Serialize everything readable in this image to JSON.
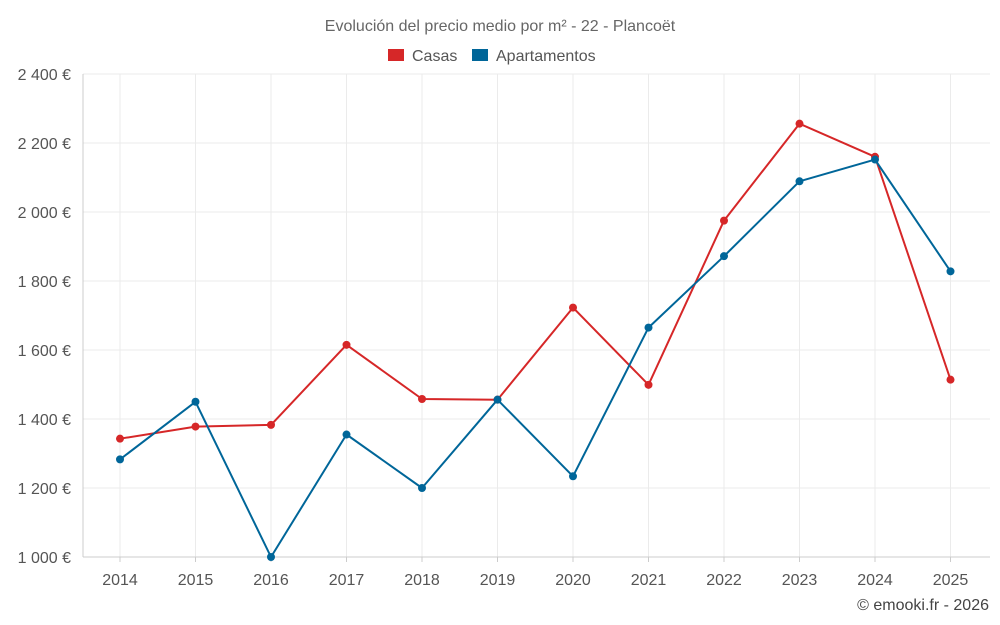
{
  "chart_data": {
    "type": "line",
    "title": "Evolución del precio medio por m² - 22 - Plancoët",
    "categories": [
      "2014",
      "2015",
      "2016",
      "2017",
      "2018",
      "2019",
      "2020",
      "2021",
      "2022",
      "2023",
      "2024",
      "2025"
    ],
    "series": [
      {
        "name": "Casas",
        "color": "#d62728",
        "values": [
          1343,
          1378,
          1383,
          1615,
          1458,
          1456,
          1723,
          1499,
          1975,
          2256,
          2160,
          1514
        ]
      },
      {
        "name": "Apartamentos",
        "color": "#006699",
        "values": [
          1283,
          1450,
          1000,
          1355,
          1200,
          1456,
          1234,
          1665,
          1872,
          2089,
          2152,
          1828
        ]
      }
    ],
    "ylim": [
      1000,
      2400
    ],
    "yticks": [
      1000,
      1200,
      1400,
      1600,
      1800,
      2000,
      2200,
      2400
    ],
    "ytick_labels": [
      "1 000 €",
      "1 200 €",
      "1 400 €",
      "1 600 €",
      "1 800 €",
      "2 000 €",
      "2 200 €",
      "2 400 €"
    ],
    "xlabel": "",
    "ylabel": "",
    "grid": true,
    "legend": "top-center"
  },
  "credit": "© emooki.fr - 2026"
}
